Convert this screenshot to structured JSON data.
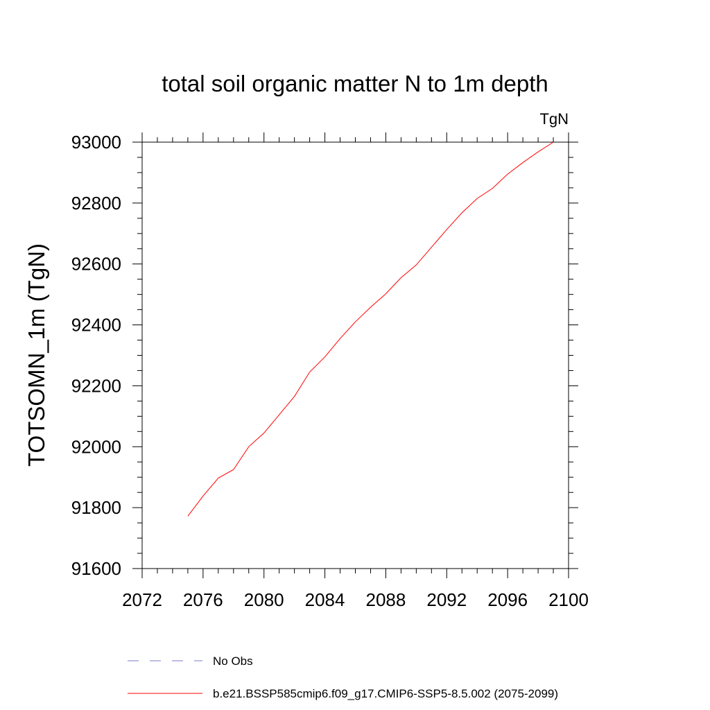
{
  "chart_data": {
    "type": "line",
    "title": "total soil organic matter N to 1m depth",
    "units_label": "TgN",
    "xlabel": "",
    "ylabel": "TOTSOMN_1m  (TgN)",
    "xlim": [
      2072,
      2100
    ],
    "ylim": [
      91600,
      93000
    ],
    "x_ticks": [
      "2072",
      "2076",
      "2080",
      "2084",
      "2088",
      "2092",
      "2096",
      "2100"
    ],
    "y_ticks": [
      "91600",
      "91800",
      "92000",
      "92200",
      "92400",
      "92600",
      "92800",
      "93000"
    ],
    "grid": false,
    "legend_position": "bottom",
    "series": [
      {
        "name": "b.e21.BSSP585cmip6.f09_g17.CMIP6-SSP5-8.5.002 (2075-2099)",
        "color": "#ff0000",
        "dash": "solid",
        "x": [
          2075,
          2076,
          2077,
          2078,
          2079,
          2080,
          2081,
          2082,
          2083,
          2084,
          2085,
          2086,
          2087,
          2088,
          2089,
          2090,
          2091,
          2092,
          2093,
          2094,
          2095,
          2096,
          2097,
          2098,
          2099
        ],
        "y": [
          91772,
          91838,
          91897,
          91925,
          92000,
          92045,
          92105,
          92165,
          92245,
          92295,
          92355,
          92410,
          92458,
          92502,
          92555,
          92597,
          92655,
          92713,
          92768,
          92815,
          92848,
          92895,
          92933,
          92968,
          93000
        ]
      }
    ],
    "legend": [
      {
        "label": "No Obs",
        "color": "#7b7bc8",
        "dash": "dashed"
      },
      {
        "label": "b.e21.BSSP585cmip6.f09_g17.CMIP6-SSP5-8.5.002 (2075-2099)",
        "color": "#ff0000",
        "dash": "solid"
      }
    ]
  }
}
